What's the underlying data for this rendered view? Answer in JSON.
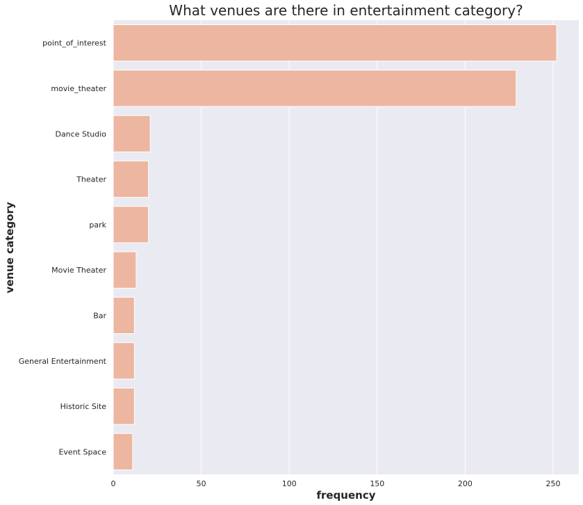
{
  "chart_data": {
    "type": "bar",
    "orientation": "horizontal",
    "title": "What venues are there in entertainment category?",
    "xlabel": "frequency",
    "ylabel": "venue category",
    "categories": [
      "point_of_interest",
      "movie_theater",
      "Dance Studio",
      "Theater",
      "park",
      "Movie Theater",
      "Bar",
      "General Entertainment",
      "Historic Site",
      "Event Space"
    ],
    "values": [
      252,
      229,
      21,
      20,
      20,
      13,
      12,
      12,
      12,
      11
    ],
    "xlim": [
      0,
      264.6
    ],
    "xticks": [
      "0",
      "50",
      "100",
      "150",
      "200",
      "250"
    ],
    "grid": true,
    "bar_color": "#EDB6A0",
    "background_color": "#EAEAF2",
    "grid_color": "#FFFFFF"
  }
}
